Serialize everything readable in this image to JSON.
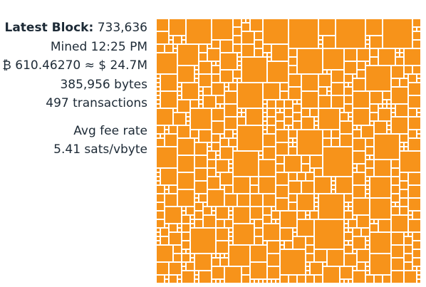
{
  "block": {
    "label": "Latest Block:",
    "height": "733,636",
    "mined": "Mined 12:25 PM",
    "value": "₿ 610.46270 ≈ $ 24.7M",
    "size": "385,956 bytes",
    "tx_count": "497 transactions",
    "fee_label": "Avg fee rate",
    "fee_rate": "5.41 sats/vbyte"
  },
  "colors": {
    "tx": "#f7931a",
    "text": "#1d2a36",
    "background": "#ffffff"
  }
}
